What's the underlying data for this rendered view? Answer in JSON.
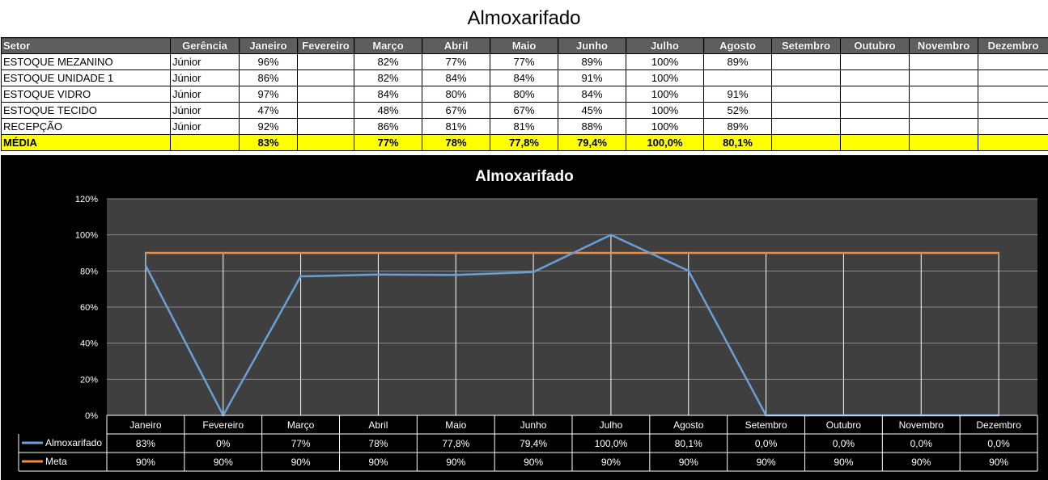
{
  "page_title": "Almoxarifado",
  "table": {
    "headers": [
      "Setor",
      "Gerência",
      "Janeiro",
      "Fevereiro",
      "Março",
      "Abril",
      "Maio",
      "Junho",
      "Julho",
      "Agosto",
      "Setembro",
      "Outubro",
      "Novembro",
      "Dezembro"
    ],
    "rows": [
      [
        "ESTOQUE MEZANINO",
        "Júnior",
        "96%",
        "",
        "82%",
        "77%",
        "77%",
        "89%",
        "100%",
        "89%",
        "",
        "",
        "",
        ""
      ],
      [
        "ESTOQUE UNIDADE 1",
        "Júnior",
        "86%",
        "",
        "82%",
        "84%",
        "84%",
        "91%",
        "100%",
        "",
        "",
        "",
        "",
        ""
      ],
      [
        "ESTOQUE VIDRO",
        "Júnior",
        "97%",
        "",
        "84%",
        "80%",
        "80%",
        "84%",
        "100%",
        "91%",
        "",
        "",
        "",
        ""
      ],
      [
        "ESTOQUE TECIDO",
        "Júnior",
        "47%",
        "",
        "48%",
        "67%",
        "67%",
        "45%",
        "100%",
        "52%",
        "",
        "",
        "",
        ""
      ],
      [
        "RECEPÇÃO",
        "Júnior",
        "92%",
        "",
        "86%",
        "81%",
        "81%",
        "88%",
        "100%",
        "89%",
        "",
        "",
        "",
        ""
      ]
    ],
    "average_row": [
      "MÉDIA",
      "",
      "83%",
      "",
      "77%",
      "78%",
      "77,8%",
      "79,4%",
      "100,0%",
      "80,1%",
      "",
      "",
      "",
      ""
    ]
  },
  "chart_data": {
    "type": "line",
    "title": "Almoxarifado",
    "categories": [
      "Janeiro",
      "Fevereiro",
      "Março",
      "Abril",
      "Maio",
      "Junho",
      "Julho",
      "Agosto",
      "Setembro",
      "Outubro",
      "Novembro",
      "Dezembro"
    ],
    "series": [
      {
        "name": "Almoxarifado",
        "values": [
          83,
          0,
          77,
          78,
          77.8,
          79.4,
          100.0,
          80.1,
          0,
          0,
          0,
          0
        ],
        "labels": [
          "83%",
          "0%",
          "77%",
          "78%",
          "77,8%",
          "79,4%",
          "100,0%",
          "80,1%",
          "0,0%",
          "0,0%",
          "0,0%",
          "0,0%"
        ],
        "color": "#6a9fd8"
      },
      {
        "name": "Meta",
        "values": [
          90,
          90,
          90,
          90,
          90,
          90,
          90,
          90,
          90,
          90,
          90,
          90
        ],
        "labels": [
          "90%",
          "90%",
          "90%",
          "90%",
          "90%",
          "90%",
          "90%",
          "90%",
          "90%",
          "90%",
          "90%",
          "90%"
        ],
        "color": "#f08a3c"
      }
    ],
    "ylim": [
      0,
      120
    ],
    "yticks": [
      0,
      20,
      40,
      60,
      80,
      100,
      120
    ],
    "ytick_labels": [
      "0%",
      "20%",
      "40%",
      "60%",
      "80%",
      "100%",
      "120%"
    ],
    "grid": true,
    "legend": "data-table-bottom",
    "plot_background": "#3f3f3f",
    "panel_background": "#000000"
  }
}
